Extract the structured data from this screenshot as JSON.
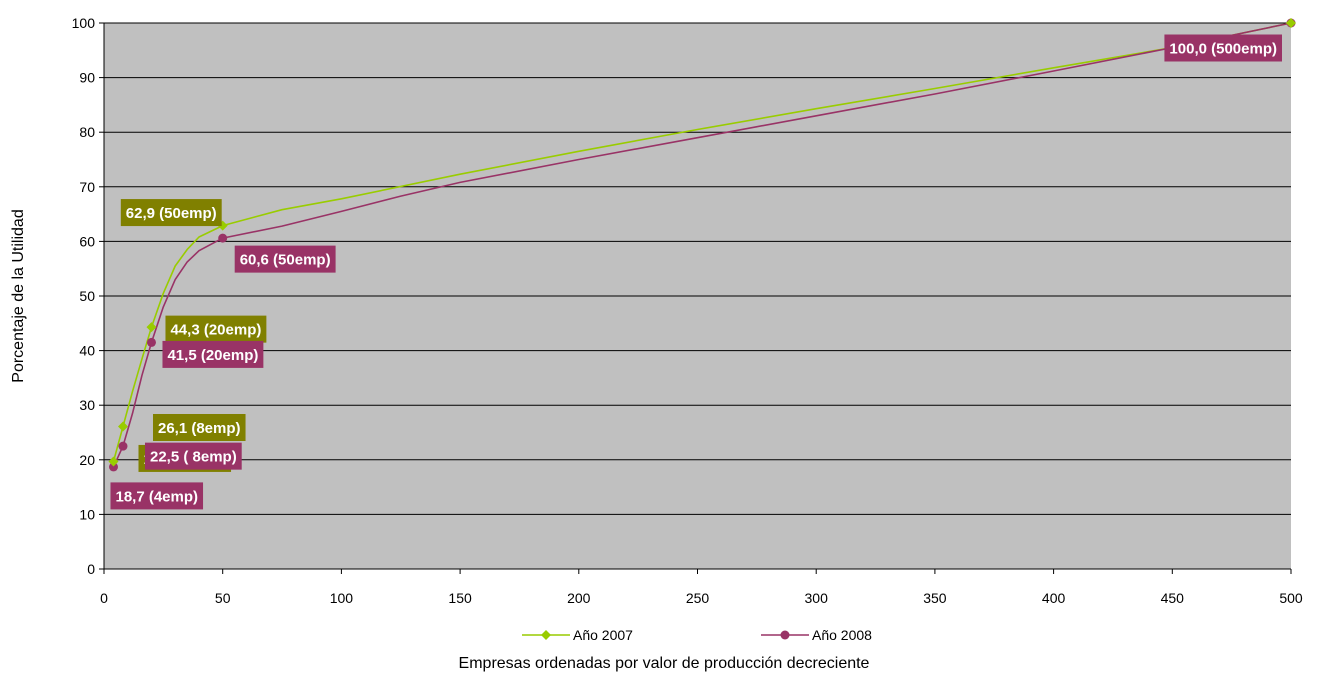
{
  "chart_data": {
    "type": "line",
    "title": "",
    "xlabel": "Empresas ordenadas por valor de producción decreciente",
    "ylabel": "Porcentaje de la Utilidad",
    "xlim": [
      0,
      500
    ],
    "ylim": [
      0,
      100
    ],
    "xticks": [
      0,
      50,
      100,
      150,
      200,
      250,
      300,
      350,
      400,
      450,
      500
    ],
    "yticks": [
      0,
      10,
      20,
      30,
      40,
      50,
      60,
      70,
      80,
      90,
      100
    ],
    "grid": "horizontal",
    "plot_background": "#c0c0c0",
    "legend_position": "bottom",
    "series": [
      {
        "name": "Año 2007",
        "color": "#99cc00",
        "marker": "diamond",
        "points": [
          {
            "x": 4,
            "y": 19.7
          },
          {
            "x": 8,
            "y": 26.1
          },
          {
            "x": 12,
            "y": 32.5
          },
          {
            "x": 16,
            "y": 38.5
          },
          {
            "x": 20,
            "y": 44.3
          },
          {
            "x": 25,
            "y": 50.5
          },
          {
            "x": 30,
            "y": 55.5
          },
          {
            "x": 35,
            "y": 58.5
          },
          {
            "x": 40,
            "y": 60.8
          },
          {
            "x": 50,
            "y": 62.9
          },
          {
            "x": 75,
            "y": 65.8
          },
          {
            "x": 100,
            "y": 67.8
          },
          {
            "x": 150,
            "y": 72.3
          },
          {
            "x": 200,
            "y": 76.5
          },
          {
            "x": 250,
            "y": 80.5
          },
          {
            "x": 300,
            "y": 84.3
          },
          {
            "x": 350,
            "y": 88.0
          },
          {
            "x": 400,
            "y": 91.8
          },
          {
            "x": 450,
            "y": 95.5
          },
          {
            "x": 500,
            "y": 100.0
          }
        ],
        "markers": [
          {
            "x": 4,
            "y": 19.7,
            "label": "19,7 (4emp)"
          },
          {
            "x": 8,
            "y": 26.1,
            "label": "26,1 (8emp)"
          },
          {
            "x": 20,
            "y": 44.3,
            "label": "44,3 (20emp)"
          },
          {
            "x": 50,
            "y": 62.9,
            "label": "62,9 (50emp)"
          },
          {
            "x": 500,
            "y": 100.0,
            "label": ""
          }
        ]
      },
      {
        "name": "Año 2008",
        "color": "#993366",
        "marker": "circle",
        "points": [
          {
            "x": 4,
            "y": 18.7
          },
          {
            "x": 8,
            "y": 22.5
          },
          {
            "x": 12,
            "y": 28.5
          },
          {
            "x": 16,
            "y": 35.5
          },
          {
            "x": 20,
            "y": 41.5
          },
          {
            "x": 25,
            "y": 48.0
          },
          {
            "x": 30,
            "y": 53.0
          },
          {
            "x": 35,
            "y": 56.2
          },
          {
            "x": 40,
            "y": 58.3
          },
          {
            "x": 50,
            "y": 60.6
          },
          {
            "x": 75,
            "y": 62.8
          },
          {
            "x": 100,
            "y": 65.5
          },
          {
            "x": 125,
            "y": 68.3
          },
          {
            "x": 150,
            "y": 70.8
          },
          {
            "x": 200,
            "y": 75.0
          },
          {
            "x": 250,
            "y": 79.0
          },
          {
            "x": 300,
            "y": 83.0
          },
          {
            "x": 350,
            "y": 87.0
          },
          {
            "x": 400,
            "y": 91.2
          },
          {
            "x": 450,
            "y": 95.5
          },
          {
            "x": 500,
            "y": 100.0
          }
        ],
        "markers": [
          {
            "x": 4,
            "y": 18.7,
            "label": "18,7 (4emp)"
          },
          {
            "x": 8,
            "y": 22.5,
            "label": "22,5 ( 8emp)"
          },
          {
            "x": 20,
            "y": 41.5,
            "label": "41,5 (20emp)"
          },
          {
            "x": 50,
            "y": 60.6,
            "label": "60,6 (50emp)"
          },
          {
            "x": 500,
            "y": 100.0,
            "label": "100,0 (500emp)"
          }
        ]
      }
    ]
  }
}
